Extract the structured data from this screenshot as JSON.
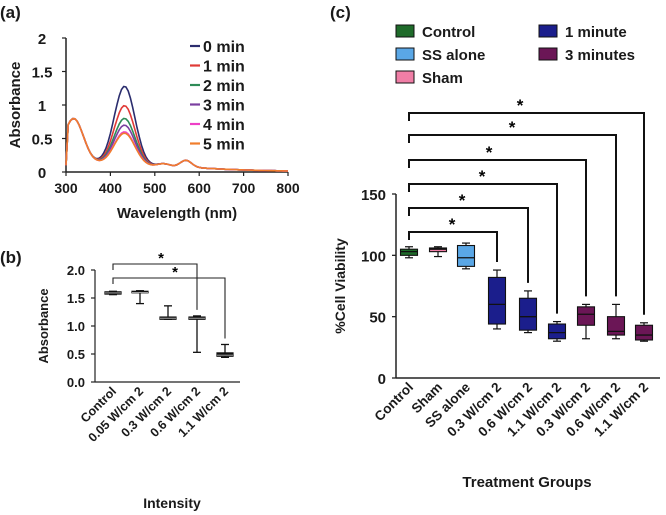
{
  "chart_data": [
    {
      "panel": "(a)",
      "type": "line",
      "xlabel": "Wavelength (nm)",
      "ylabel": "Absorbance",
      "xlim": [
        300,
        800
      ],
      "ylim": [
        0,
        2
      ],
      "xticks": [
        "300",
        "400",
        "500",
        "600",
        "700",
        "800"
      ],
      "yticks": [
        "0",
        "0.5",
        "1",
        "1.5",
        "2"
      ],
      "series": [
        {
          "name": "0 min",
          "color": "#2b2d6e",
          "peak": 1.34
        },
        {
          "name": "1 min",
          "color": "#e03a36",
          "peak": 1.05
        },
        {
          "name": "2 min",
          "color": "#2e8b57",
          "peak": 0.86
        },
        {
          "name": "3 min",
          "color": "#7b3fa0",
          "peak": 0.76
        },
        {
          "name": "4 min",
          "color": "#ee3fc6",
          "peak": 0.66
        },
        {
          "name": "5 min",
          "color": "#f07d2c",
          "peak": 0.64
        }
      ]
    },
    {
      "panel": "(b)",
      "type": "box",
      "xlabel": "Intensity",
      "ylabel": "Absorbance",
      "ylim": [
        0,
        2
      ],
      "yticks": [
        "0.0",
        "0.5",
        "1.0",
        "1.5",
        "2.0"
      ],
      "categories": [
        "Control",
        "0.05 W/cm 2",
        "0.3 W/cm 2",
        "0.6 W/cm 2",
        "1.1 W/cm 2"
      ],
      "boxes": [
        {
          "min": 1.56,
          "q1": 1.57,
          "median": 1.59,
          "q3": 1.61,
          "max": 1.62
        },
        {
          "min": 1.4,
          "q1": 1.6,
          "median": 1.6,
          "q3": 1.62,
          "max": 1.63
        },
        {
          "min": 1.12,
          "q1": 1.12,
          "median": 1.14,
          "q3": 1.16,
          "max": 1.36
        },
        {
          "min": 0.53,
          "q1": 1.12,
          "median": 1.14,
          "q3": 1.16,
          "max": 1.18
        },
        {
          "min": 0.44,
          "q1": 0.46,
          "median": 0.48,
          "q3": 0.52,
          "max": 0.67
        }
      ],
      "significance": [
        {
          "from": 0,
          "to": 3,
          "label": "*"
        },
        {
          "from": 0,
          "to": 4,
          "label": "*"
        }
      ]
    },
    {
      "panel": "(c)",
      "type": "box",
      "xlabel": "Treatment Groups",
      "ylabel": "%Cell Viability",
      "ylim": [
        0,
        150
      ],
      "yticks": [
        "0",
        "50",
        "100",
        "150"
      ],
      "categories": [
        "Control",
        "Sham",
        "SS alone",
        "0.3 W/cm 2",
        "0.6 W/cm 2",
        "1.1 W/cm 2",
        "0.3 W/cm 2",
        "0.6 W/cm 2",
        "1.1 W/cm 2"
      ],
      "legend": [
        {
          "name": "Control",
          "color": "#1f6b2a"
        },
        {
          "name": "SS alone",
          "color": "#5aa7e6"
        },
        {
          "name": "Sham",
          "color": "#f07ea6"
        },
        {
          "name": "1 minute",
          "color": "#1b1e8c"
        },
        {
          "name": "3 minutes",
          "color": "#6b1656"
        }
      ],
      "boxes": [
        {
          "group": "Control",
          "min": 98,
          "q1": 100,
          "median": 103,
          "q3": 105,
          "max": 107
        },
        {
          "group": "Sham",
          "min": 99,
          "q1": 103,
          "median": 105,
          "q3": 106,
          "max": 107
        },
        {
          "group": "SS alone",
          "min": 89,
          "q1": 91,
          "median": 98,
          "q3": 108,
          "max": 110
        },
        {
          "group": "1 minute",
          "min": 40,
          "q1": 44,
          "median": 60,
          "q3": 82,
          "max": 88
        },
        {
          "group": "1 minute",
          "min": 37,
          "q1": 39,
          "median": 50,
          "q3": 65,
          "max": 71
        },
        {
          "group": "1 minute",
          "min": 30,
          "q1": 32,
          "median": 37,
          "q3": 44,
          "max": 46
        },
        {
          "group": "3 minutes",
          "min": 32,
          "q1": 43,
          "median": 52,
          "q3": 58,
          "max": 60
        },
        {
          "group": "3 minutes",
          "min": 32,
          "q1": 35,
          "median": 38,
          "q3": 50,
          "max": 60
        },
        {
          "group": "3 minutes",
          "min": 30,
          "q1": 31,
          "median": 35,
          "q3": 43,
          "max": 45
        }
      ],
      "significance": [
        {
          "from": 0,
          "to": 3,
          "label": "*"
        },
        {
          "from": 0,
          "to": 4,
          "label": "*"
        },
        {
          "from": 0,
          "to": 5,
          "label": "*"
        },
        {
          "from": 0,
          "to": 6,
          "label": "*"
        },
        {
          "from": 0,
          "to": 7,
          "label": "*"
        },
        {
          "from": 0,
          "to": 8,
          "label": "*"
        }
      ]
    }
  ]
}
